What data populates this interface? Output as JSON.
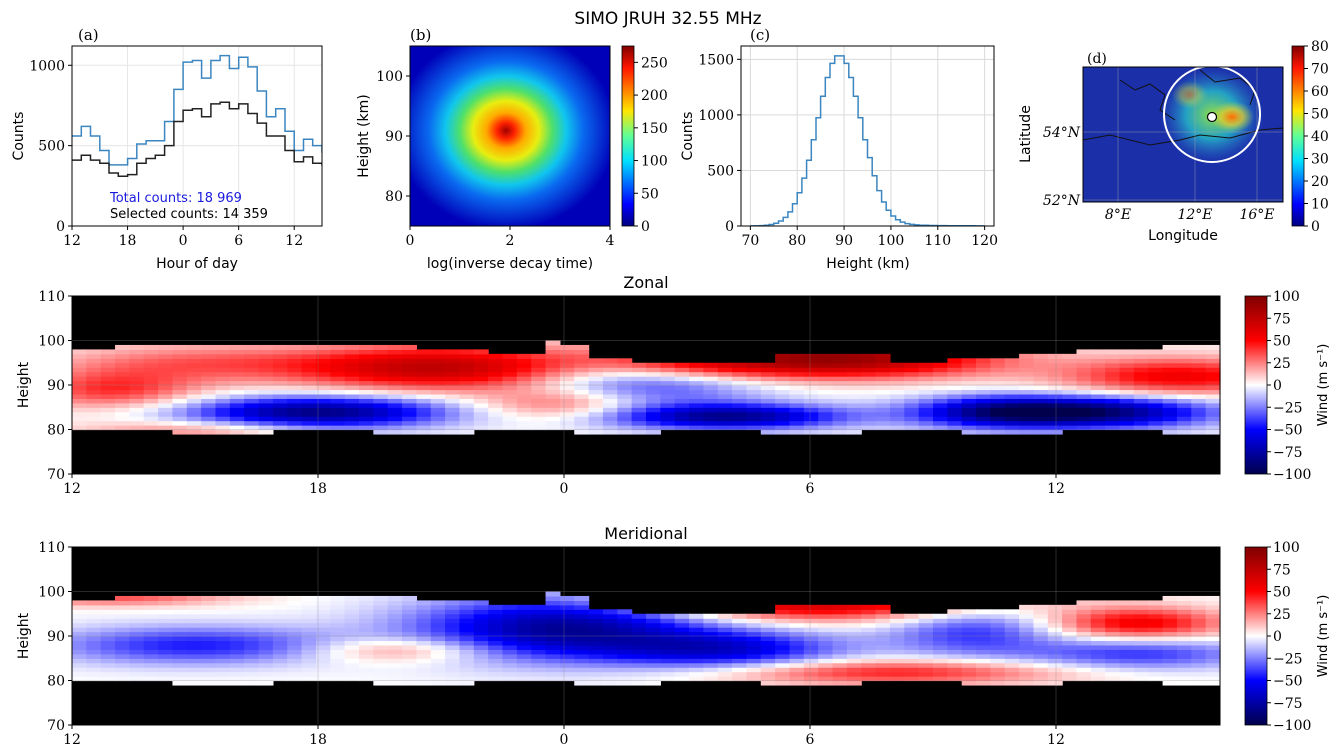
{
  "figure_title": "SIMO JRUH 32.55 MHz",
  "colors": {
    "hist_total": "#3b86c0",
    "hist_selected": "#222222",
    "total_text": "#1a1adf",
    "map_circle": "#ffffff"
  },
  "chart_data": [
    {
      "id": "a",
      "type": "line",
      "panel_label": "(a)",
      "xlabel": "Hour of day",
      "ylabel": "Counts",
      "x_ticks": [
        "12",
        "18",
        "0",
        "6",
        "12"
      ],
      "y_ticks": [
        "0",
        "500",
        "1000"
      ],
      "ylim": [
        0,
        1120
      ],
      "grid": true,
      "x_hours": [
        0,
        1,
        2,
        3,
        4,
        5,
        6,
        7,
        8,
        9,
        10,
        11,
        12,
        13,
        14,
        15,
        16,
        17,
        18,
        19,
        20,
        21,
        22,
        23,
        24,
        25,
        26,
        27
      ],
      "series": [
        {
          "values": [
            560,
            620,
            560,
            470,
            380,
            380,
            420,
            510,
            530,
            530,
            650,
            850,
            1020,
            1030,
            920,
            1030,
            1060,
            980,
            1050,
            990,
            840,
            680,
            730,
            590,
            470,
            540,
            500,
            460
          ]
        },
        {
          "values": [
            410,
            440,
            410,
            390,
            330,
            310,
            320,
            390,
            420,
            440,
            500,
            650,
            720,
            730,
            680,
            760,
            770,
            730,
            760,
            700,
            640,
            560,
            560,
            470,
            400,
            430,
            390,
            380
          ]
        }
      ],
      "annotations": {
        "total": "Total counts: 18 969",
        "selected": "Selected counts: 14 359"
      }
    },
    {
      "id": "b",
      "type": "heatmap",
      "panel_label": "(b)",
      "xlabel": "log(inverse decay time)",
      "ylabel": "Height (km)",
      "x_ticks": [
        "0",
        "2",
        "4"
      ],
      "y_ticks": [
        "80",
        "90",
        "100"
      ],
      "xlim": [
        0,
        4
      ],
      "ylim": [
        75,
        105
      ],
      "peak": {
        "x": 1.9,
        "y": 89,
        "value": 270
      },
      "colorbar_ticks": [
        "0",
        "50",
        "100",
        "150",
        "200",
        "250"
      ],
      "clim": [
        0,
        275
      ]
    },
    {
      "id": "c",
      "type": "line",
      "panel_label": "(c)",
      "xlabel": "Height (km)",
      "ylabel": "Counts",
      "x_ticks": [
        "70",
        "80",
        "90",
        "100",
        "110",
        "120"
      ],
      "y_ticks": [
        "0",
        "500",
        "1000",
        "1500"
      ],
      "xlim": [
        68,
        122
      ],
      "ylim": [
        0,
        1620
      ],
      "grid": true,
      "series": [
        {
          "mean": 89,
          "sigma": 4.7,
          "peak": 1540,
          "values_note": ""
        }
      ]
    },
    {
      "id": "d",
      "type": "heatmap",
      "panel_label": "(d)",
      "xlabel": "Longitude",
      "ylabel": "Latitude",
      "x_ticks": [
        "8°E",
        "12°E",
        "16°E"
      ],
      "y_ticks": [
        "52°N",
        "54°N"
      ],
      "colorbar_ticks": [
        "0",
        "10",
        "20",
        "30",
        "40",
        "50",
        "60",
        "70",
        "80"
      ],
      "clim": [
        0,
        80
      ],
      "station": {
        "lon": 13.0,
        "lat": 54.6
      }
    },
    {
      "id": "zonal",
      "type": "heatmap",
      "title": "Zonal",
      "ylabel": "Height",
      "x_ticks": [
        "12",
        "18",
        "0",
        "6",
        "12"
      ],
      "y_ticks": [
        "70",
        "80",
        "90",
        "100",
        "110"
      ],
      "ylim": [
        70,
        110
      ],
      "colorbar_label": "Wind (m s⁻¹)",
      "colorbar_ticks": [
        "100",
        "75",
        "50",
        "25",
        "0",
        "−25",
        "−50",
        "−75",
        "−100"
      ],
      "clim": [
        -100,
        100
      ],
      "features": [
        {
          "t": 3,
          "h": 95,
          "v": 30,
          "st": 2.5,
          "sh": 3
        },
        {
          "t": 9,
          "h": 94,
          "v": 75,
          "st": 2.5,
          "sh": 3.5
        },
        {
          "t": 15,
          "h": 95,
          "v": 55,
          "st": 2,
          "sh": 3
        },
        {
          "t": 19,
          "h": 96,
          "v": 85,
          "st": 2.5,
          "sh": 3
        },
        {
          "t": 27,
          "h": 92,
          "v": 55,
          "st": 2,
          "sh": 3
        },
        {
          "t": 6,
          "h": 84,
          "v": -85,
          "st": 2.2,
          "sh": 2.5
        },
        {
          "t": 14,
          "h": 91,
          "v": -50,
          "st": 2,
          "sh": 4
        },
        {
          "t": 16,
          "h": 83,
          "v": -80,
          "st": 2,
          "sh": 2
        },
        {
          "t": 22.5,
          "h": 84,
          "v": -60,
          "st": 1.5,
          "sh": 2.5
        },
        {
          "t": 25,
          "h": 84,
          "v": -85,
          "st": 2,
          "sh": 2.5
        },
        {
          "t": 12,
          "h": 86,
          "v": 35,
          "st": 1.5,
          "sh": 2.5
        },
        {
          "t": 1,
          "h": 89,
          "v": 40,
          "st": 1.5,
          "sh": 3
        },
        {
          "t": 3,
          "h": 80,
          "v": 25,
          "st": 2,
          "sh": 1.5
        }
      ]
    },
    {
      "id": "meridional",
      "type": "heatmap",
      "title": "Meridional",
      "ylabel": "Height",
      "x_ticks": [
        "12",
        "18",
        "0",
        "6",
        "12"
      ],
      "y_ticks": [
        "70",
        "80",
        "90",
        "100",
        "110"
      ],
      "ylim": [
        70,
        110
      ],
      "colorbar_label": "Wind (m s⁻¹)",
      "colorbar_ticks": [
        "100",
        "75",
        "50",
        "25",
        "0",
        "−25",
        "−50",
        "−75",
        "−100"
      ],
      "clim": [
        -100,
        100
      ],
      "features": [
        {
          "t": 12,
          "h": 92,
          "v": -80,
          "st": 2.5,
          "sh": 5
        },
        {
          "t": 3,
          "h": 88,
          "v": -45,
          "st": 2.5,
          "sh": 3
        },
        {
          "t": 16,
          "h": 87,
          "v": -55,
          "st": 2,
          "sh": 3
        },
        {
          "t": 22,
          "h": 91,
          "v": -40,
          "st": 1.5,
          "sh": 4
        },
        {
          "t": 26,
          "h": 86,
          "v": -40,
          "st": 2,
          "sh": 2.5
        },
        {
          "t": 18,
          "h": 98,
          "v": 75,
          "st": 3,
          "sh": 3
        },
        {
          "t": 26,
          "h": 93,
          "v": 55,
          "st": 1.5,
          "sh": 2.5
        },
        {
          "t": 8,
          "h": 87,
          "v": 30,
          "st": 1.5,
          "sh": 2
        },
        {
          "t": 20,
          "h": 82,
          "v": 45,
          "st": 3,
          "sh": 2
        },
        {
          "t": 1,
          "h": 99,
          "v": 35,
          "st": 2,
          "sh": 1.5
        }
      ]
    }
  ]
}
